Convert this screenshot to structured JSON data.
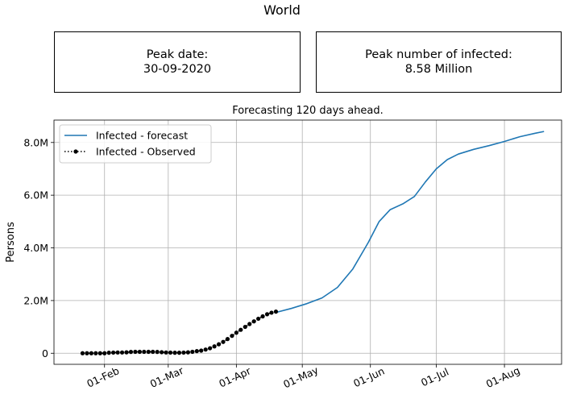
{
  "figure_title": "World",
  "panels": {
    "peak_date": {
      "label": "Peak date:",
      "value": "30-09-2020"
    },
    "peak_number": {
      "label": "Peak number of infected:",
      "value": "8.58 Million"
    }
  },
  "chart_data": {
    "type": "line",
    "title": "Forecasting 120 days ahead.",
    "xlabel": "",
    "ylabel": "Persons",
    "x_ticks": [
      "01-Feb",
      "01-Mar",
      "01-Apr",
      "01-May",
      "01-Jun",
      "01-Jul",
      "01-Aug"
    ],
    "y_ticks": [
      "0",
      "2.0M",
      "4.0M",
      "6.0M",
      "8.0M"
    ],
    "xlim": [
      "2020-01-09",
      "2020-08-27"
    ],
    "ylim": [
      -420000,
      8850000
    ],
    "grid": true,
    "legend_position": "top-left",
    "series": [
      {
        "name": "Infected - forecast",
        "color": "#1f77b4",
        "style": "solid",
        "points": [
          [
            "2020-04-19",
            1550000
          ],
          [
            "2020-04-26",
            1700000
          ],
          [
            "2020-05-03",
            1880000
          ],
          [
            "2020-05-10",
            2100000
          ],
          [
            "2020-05-17",
            2500000
          ],
          [
            "2020-05-24",
            3200000
          ],
          [
            "2020-05-31",
            4200000
          ],
          [
            "2020-06-05",
            5000000
          ],
          [
            "2020-06-10",
            5450000
          ],
          [
            "2020-06-16",
            5680000
          ],
          [
            "2020-06-21",
            5950000
          ],
          [
            "2020-06-26",
            6500000
          ],
          [
            "2020-07-01",
            7000000
          ],
          [
            "2020-07-06",
            7350000
          ],
          [
            "2020-07-11",
            7560000
          ],
          [
            "2020-07-18",
            7740000
          ],
          [
            "2020-07-25",
            7880000
          ],
          [
            "2020-08-01",
            8040000
          ],
          [
            "2020-08-08",
            8220000
          ],
          [
            "2020-08-15",
            8350000
          ],
          [
            "2020-08-19",
            8420000
          ]
        ]
      },
      {
        "name": "Infected - Observed",
        "color": "#000000",
        "style": "dotted",
        "marker": "circle",
        "points": [
          [
            "2020-01-22",
            0
          ],
          [
            "2020-01-24",
            0
          ],
          [
            "2020-01-26",
            0
          ],
          [
            "2020-01-28",
            0
          ],
          [
            "2020-01-30",
            0
          ],
          [
            "2020-02-01",
            0
          ],
          [
            "2020-02-03",
            20000
          ],
          [
            "2020-02-05",
            25000
          ],
          [
            "2020-02-07",
            30000
          ],
          [
            "2020-02-09",
            30000
          ],
          [
            "2020-02-11",
            35000
          ],
          [
            "2020-02-13",
            50000
          ],
          [
            "2020-02-15",
            55000
          ],
          [
            "2020-02-17",
            55000
          ],
          [
            "2020-02-19",
            55000
          ],
          [
            "2020-02-21",
            55000
          ],
          [
            "2020-02-23",
            55000
          ],
          [
            "2020-02-25",
            50000
          ],
          [
            "2020-02-27",
            40000
          ],
          [
            "2020-02-29",
            30000
          ],
          [
            "2020-03-02",
            25000
          ],
          [
            "2020-03-04",
            20000
          ],
          [
            "2020-03-06",
            20000
          ],
          [
            "2020-03-08",
            25000
          ],
          [
            "2020-03-10",
            35000
          ],
          [
            "2020-03-12",
            55000
          ],
          [
            "2020-03-14",
            80000
          ],
          [
            "2020-03-16",
            100000
          ],
          [
            "2020-03-18",
            140000
          ],
          [
            "2020-03-20",
            190000
          ],
          [
            "2020-03-22",
            260000
          ],
          [
            "2020-03-24",
            340000
          ],
          [
            "2020-03-26",
            430000
          ],
          [
            "2020-03-28",
            540000
          ],
          [
            "2020-03-30",
            660000
          ],
          [
            "2020-04-01",
            780000
          ],
          [
            "2020-04-03",
            890000
          ],
          [
            "2020-04-05",
            1000000
          ],
          [
            "2020-04-07",
            1110000
          ],
          [
            "2020-04-09",
            1210000
          ],
          [
            "2020-04-11",
            1310000
          ],
          [
            "2020-04-13",
            1400000
          ],
          [
            "2020-04-15",
            1480000
          ],
          [
            "2020-04-17",
            1540000
          ],
          [
            "2020-04-19",
            1580000
          ]
        ]
      }
    ]
  }
}
